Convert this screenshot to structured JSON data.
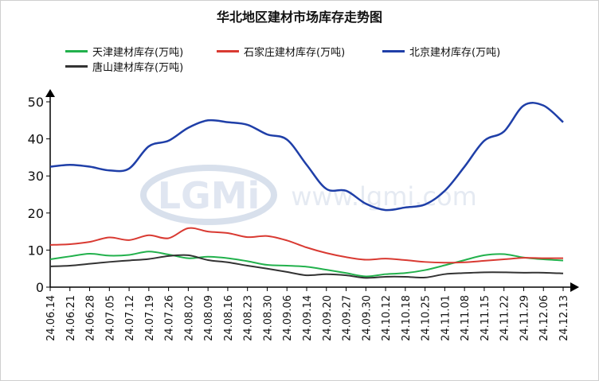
{
  "chart_data": {
    "type": "line",
    "title": "华北地区建材市场库存走势图",
    "watermark": "LGMi www.lgmi.com",
    "ylim": [
      0,
      50
    ],
    "yticks": [
      0,
      10,
      20,
      30,
      40,
      50
    ],
    "grid": false,
    "legend_position": "top",
    "x": [
      "24.06.14",
      "24.06.21",
      "24.06.28",
      "24.07.05",
      "24.07.12",
      "24.07.19",
      "24.07.26",
      "24.08.02",
      "24.08.09",
      "24.08.16",
      "24.08.23",
      "24.08.30",
      "24.09.06",
      "24.09.14",
      "24.09.20",
      "24.09.27",
      "24.09.30",
      "24.10.12",
      "24.10.18",
      "24.10.25",
      "24.11.01",
      "24.11.08",
      "24.11.15",
      "24.11.22",
      "24.11.29",
      "24.12.06",
      "24.12.13"
    ],
    "series": [
      {
        "name": "天津建材库存(万吨)",
        "color": "#22b14c",
        "values": [
          7.5,
          8.3,
          9.0,
          8.5,
          8.7,
          9.6,
          8.8,
          7.8,
          8.2,
          7.8,
          7.0,
          6.0,
          5.8,
          5.5,
          4.7,
          3.8,
          2.9,
          3.5,
          3.8,
          4.6,
          5.9,
          7.3,
          8.6,
          8.9,
          8.0,
          7.5,
          7.2
        ]
      },
      {
        "name": "石家庄建材库存(万吨)",
        "color": "#d93a32",
        "values": [
          11.4,
          11.6,
          12.2,
          13.4,
          12.7,
          14.0,
          13.2,
          15.9,
          15.0,
          14.6,
          13.5,
          13.8,
          12.6,
          10.7,
          9.2,
          8.1,
          7.4,
          7.7,
          7.3,
          6.8,
          6.6,
          6.7,
          7.1,
          7.5,
          7.9,
          7.8,
          7.8
        ]
      },
      {
        "name": "北京建材库存(万吨)",
        "color": "#1f3fa8",
        "values": [
          32.5,
          33.0,
          32.5,
          31.5,
          32.0,
          38.0,
          39.5,
          43.0,
          45.0,
          44.5,
          43.8,
          41.2,
          39.8,
          33.0,
          26.5,
          26.0,
          22.5,
          20.8,
          21.5,
          22.3,
          26.0,
          32.5,
          39.5,
          42.0,
          49.0,
          49.0,
          44.5
        ]
      },
      {
        "name": "唐山建材库存(万吨)",
        "color": "#333333",
        "values": [
          5.6,
          5.8,
          6.3,
          6.8,
          7.2,
          7.6,
          8.4,
          8.6,
          7.3,
          6.7,
          5.8,
          5.0,
          4.1,
          3.2,
          3.5,
          3.2,
          2.5,
          2.8,
          2.8,
          2.6,
          3.5,
          3.8,
          4.0,
          4.0,
          3.9,
          3.9,
          3.7
        ]
      }
    ]
  }
}
